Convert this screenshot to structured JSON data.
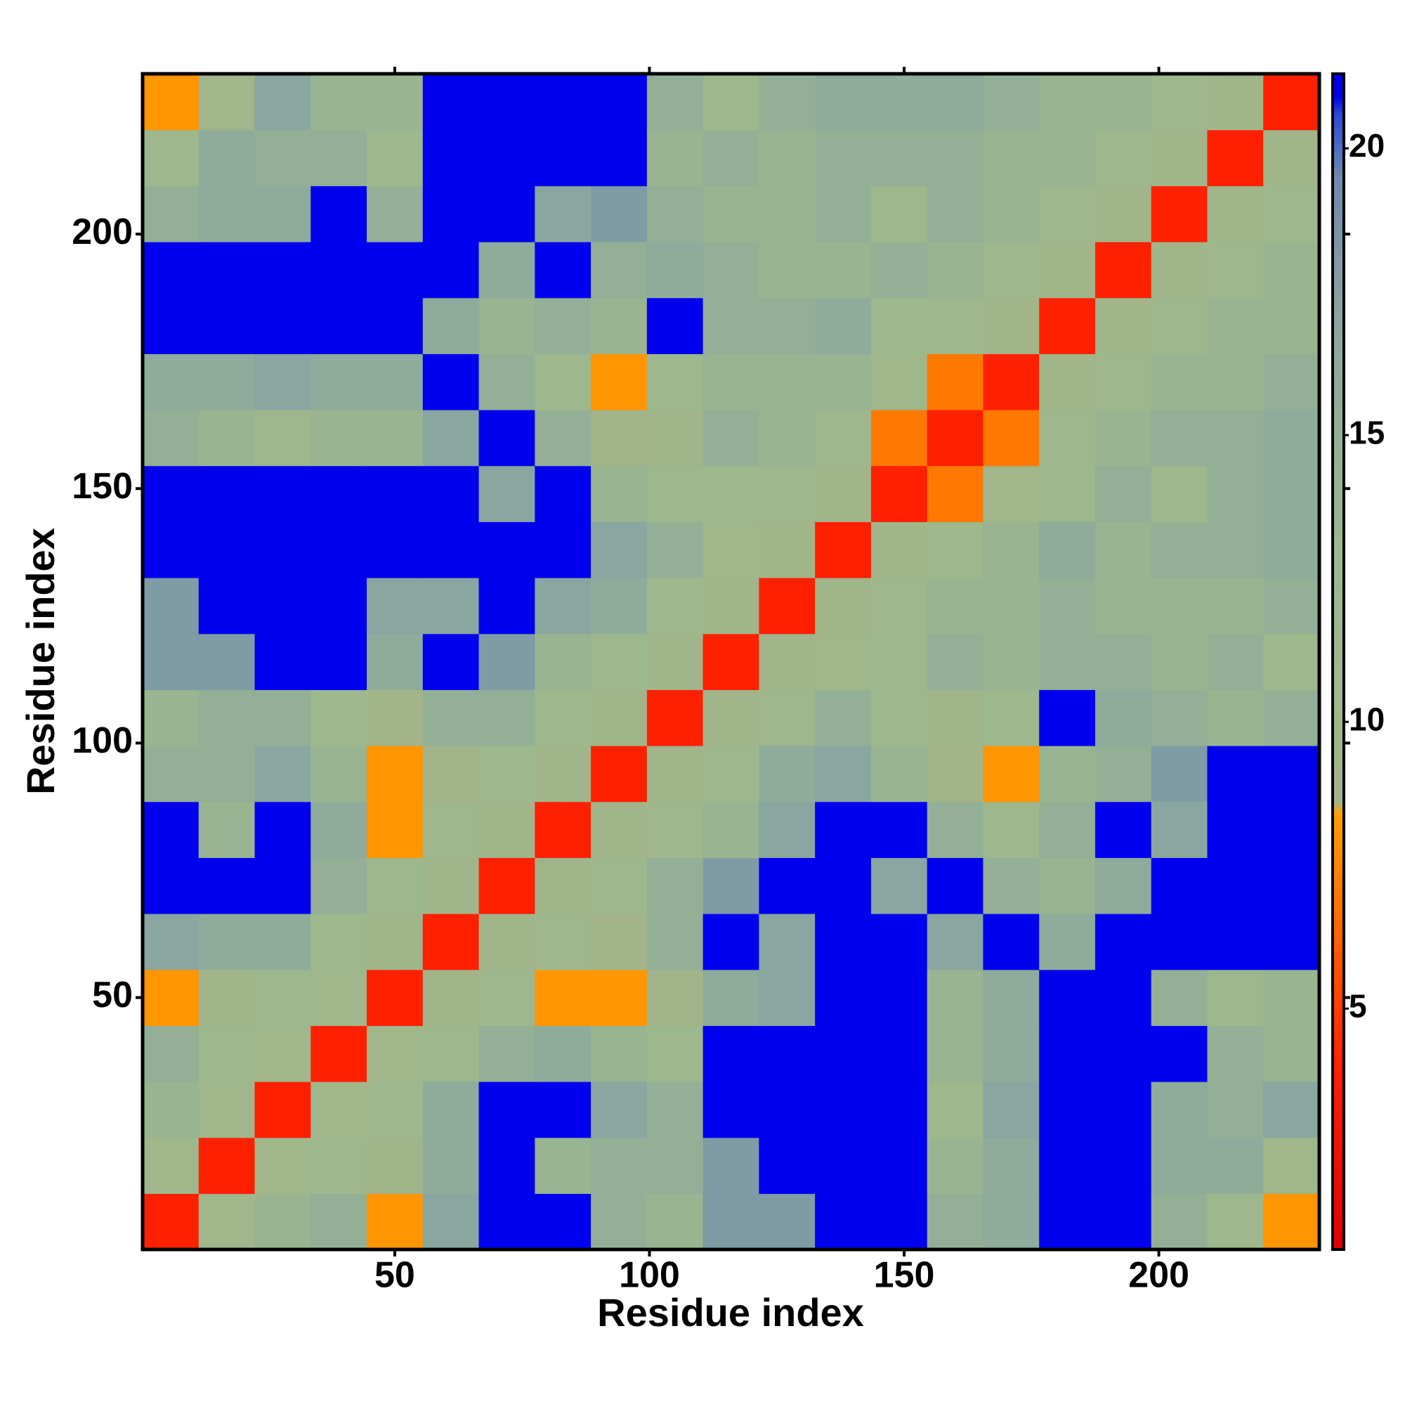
{
  "chart_data": {
    "type": "heatmap",
    "xlabel": "Residue index",
    "ylabel": "Residue index",
    "xbins": [
      0.5,
      11.5,
      22.5,
      33.5,
      44.5,
      55.5,
      66.5,
      77.5,
      88.5,
      99.5,
      110.5,
      121.5,
      132.5,
      143.5,
      154.5,
      165.5,
      176.5,
      187.5,
      198.5,
      209.5,
      220.5,
      231.5
    ],
    "ybins": [
      0.5,
      11.5,
      22.5,
      33.5,
      44.5,
      55.5,
      66.5,
      77.5,
      88.5,
      99.5,
      110.5,
      121.5,
      132.5,
      143.5,
      154.5,
      165.5,
      176.5,
      187.5,
      198.5,
      209.5,
      220.5,
      231.5
    ],
    "z": [
      [
        4,
        11,
        14,
        15,
        8,
        17,
        21,
        21,
        15,
        14,
        18,
        18,
        21,
        21,
        15,
        16,
        21,
        21,
        15,
        13,
        8
      ],
      [
        11,
        4,
        11,
        13,
        10,
        16,
        21,
        14,
        15,
        15,
        18,
        21,
        21,
        21,
        14,
        16,
        21,
        21,
        16,
        16,
        11
      ],
      [
        14,
        11,
        4,
        11,
        13,
        16,
        21,
        21,
        17,
        15,
        21,
        21,
        21,
        21,
        12,
        17,
        21,
        21,
        16,
        15,
        17
      ],
      [
        15,
        13,
        11,
        4,
        11,
        13,
        15,
        16,
        14,
        13,
        21,
        21,
        21,
        21,
        14,
        16,
        21,
        21,
        21,
        15,
        14
      ],
      [
        8,
        10,
        13,
        11,
        4,
        10,
        13,
        8,
        8,
        9,
        16,
        17,
        21,
        21,
        14,
        16,
        21,
        21,
        15,
        13,
        14
      ],
      [
        17,
        16,
        16,
        13,
        10,
        4,
        10,
        12,
        9,
        15,
        21,
        17,
        21,
        21,
        17,
        21,
        16,
        21,
        21,
        21,
        21
      ],
      [
        21,
        21,
        21,
        15,
        13,
        10,
        4,
        10,
        13,
        15,
        18,
        21,
        21,
        17,
        21,
        15,
        14,
        16,
        21,
        21,
        21
      ],
      [
        21,
        14,
        21,
        16,
        8,
        12,
        10,
        4,
        10,
        12,
        14,
        17,
        21,
        21,
        15,
        12,
        15,
        21,
        17,
        21,
        21
      ],
      [
        15,
        15,
        17,
        14,
        8,
        9,
        13,
        10,
        4,
        10,
        13,
        16,
        17,
        14,
        9,
        8,
        14,
        15,
        18,
        21,
        21
      ],
      [
        14,
        15,
        15,
        13,
        9,
        15,
        15,
        12,
        10,
        4,
        10,
        12,
        15,
        13,
        10,
        13,
        21,
        16,
        15,
        14,
        15
      ],
      [
        18,
        18,
        21,
        21,
        16,
        21,
        18,
        14,
        13,
        10,
        4,
        10,
        11,
        13,
        15,
        14,
        15,
        15,
        14,
        15,
        13
      ],
      [
        18,
        21,
        21,
        21,
        17,
        17,
        21,
        17,
        16,
        12,
        10,
        4,
        10,
        12,
        14,
        14,
        15,
        14,
        14,
        14,
        15
      ],
      [
        21,
        21,
        21,
        21,
        21,
        21,
        21,
        21,
        17,
        15,
        11,
        10,
        4,
        10,
        12,
        14,
        16,
        14,
        15,
        15,
        16
      ],
      [
        21,
        21,
        21,
        21,
        21,
        21,
        17,
        21,
        14,
        13,
        13,
        12,
        10,
        4,
        7,
        11,
        13,
        15,
        12,
        15,
        16
      ],
      [
        15,
        14,
        12,
        14,
        14,
        17,
        21,
        15,
        9,
        10,
        15,
        14,
        12,
        7,
        4,
        7,
        12,
        14,
        15,
        15,
        16
      ],
      [
        16,
        16,
        17,
        16,
        16,
        21,
        15,
        12,
        8,
        13,
        14,
        14,
        14,
        11,
        7,
        4,
        10,
        12,
        14,
        14,
        15
      ],
      [
        21,
        21,
        21,
        21,
        21,
        16,
        14,
        15,
        14,
        21,
        15,
        15,
        16,
        13,
        12,
        10,
        4,
        10,
        12,
        14,
        14
      ],
      [
        21,
        21,
        21,
        21,
        21,
        21,
        16,
        21,
        15,
        16,
        15,
        14,
        14,
        15,
        14,
        12,
        10,
        4,
        10,
        12,
        14
      ],
      [
        15,
        16,
        16,
        21,
        15,
        21,
        21,
        17,
        18,
        15,
        14,
        14,
        15,
        12,
        15,
        14,
        12,
        10,
        4,
        10,
        12
      ],
      [
        13,
        16,
        15,
        15,
        13,
        21,
        21,
        21,
        21,
        14,
        15,
        14,
        15,
        15,
        15,
        14,
        14,
        12,
        10,
        4,
        10
      ],
      [
        8,
        11,
        17,
        14,
        14,
        21,
        21,
        21,
        21,
        15,
        13,
        15,
        16,
        16,
        16,
        15,
        14,
        14,
        12,
        10,
        4
      ]
    ],
    "xlim": [
      0.5,
      231.5
    ],
    "ylim": [
      0.5,
      231.5
    ],
    "xticks": [
      50,
      100,
      150,
      200
    ],
    "yticks": [
      50,
      100,
      150,
      200
    ],
    "clim": [
      0.8,
      21.3
    ],
    "cticks": [
      5,
      10,
      15,
      20
    ],
    "colorscale": [
      [
        0.8,
        "#e00000"
      ],
      [
        4,
        "#ff2000"
      ],
      [
        6.5,
        "#ff6a00"
      ],
      [
        8.4,
        "#ffa000"
      ],
      [
        8.6,
        "#a4b48a"
      ],
      [
        13,
        "#9cb88c"
      ],
      [
        17,
        "#8aa6a0"
      ],
      [
        19.5,
        "#6f8aae"
      ],
      [
        20.6,
        "#2a48d8"
      ],
      [
        20.9,
        "#0000ee"
      ],
      [
        21.3,
        "#0000ee"
      ]
    ]
  }
}
